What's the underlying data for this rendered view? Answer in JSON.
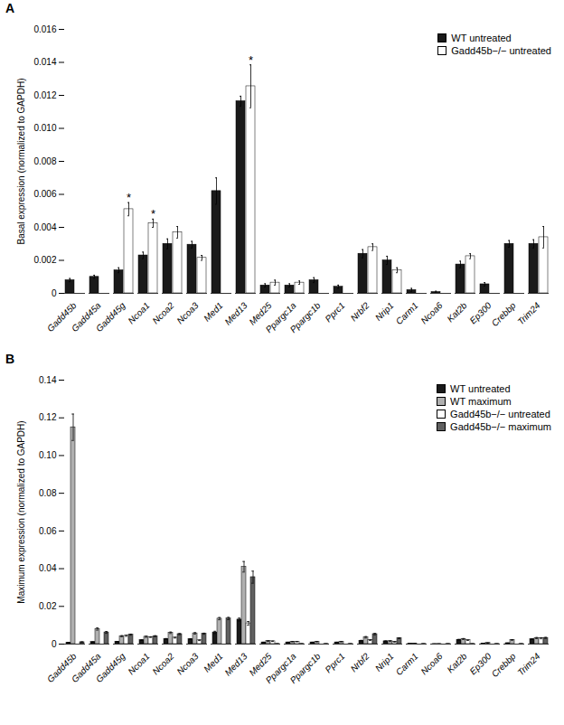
{
  "chart_data": [
    {
      "type": "bar",
      "title": "A",
      "ylabel": "Basal expression (normalized to GAPDH)",
      "categories": [
        "Gadd45b",
        "Gadd45a",
        "Gadd45g",
        "Ncoa1",
        "Ncoa2",
        "Ncoa3",
        "Med1",
        "Med13",
        "Med25",
        "Ppargc1a",
        "Ppargc1b",
        "Pprc1",
        "Nrbf2",
        "Nrip1",
        "Carm1",
        "Ncoa6",
        "Kat2b",
        "Ep300",
        "Crebbp",
        "Trim24"
      ],
      "series": [
        {
          "name": "WT untreated",
          "color": "#1a1a1a",
          "values": [
            0.0008,
            0.001,
            0.0014,
            0.0023,
            0.003,
            0.00295,
            0.0062,
            0.01165,
            0.00048,
            0.00048,
            0.0008,
            0.0004,
            0.0024,
            0.002,
            0.0002,
            8e-05,
            0.00175,
            0.00055,
            0.003,
            0.003
          ],
          "errors": [
            0.0001,
            0.0001,
            0.00015,
            0.0002,
            0.0003,
            0.0002,
            0.0008,
            0.0003,
            0.0001,
            0.0001,
            0.00015,
            0.0001,
            0.00025,
            0.00025,
            0.0001,
            5e-05,
            0.0002,
            0.0001,
            0.0002,
            0.00025
          ]
        },
        {
          "name": "Gadd45b−/− untreated",
          "color": "#ffffff",
          "values": [
            0.0,
            0.0,
            0.0051,
            0.00425,
            0.0037,
            0.00215,
            0.0,
            0.01255,
            0.00065,
            0.00065,
            0.0,
            0.0,
            0.0028,
            0.0014,
            0.0,
            0.0,
            0.00225,
            0.0,
            0.0,
            0.0034
          ],
          "errors": [
            0.0,
            0.0,
            0.0004,
            0.00025,
            0.00035,
            0.00015,
            0.0,
            0.0013,
            0.00015,
            0.0001,
            0.0,
            0.0,
            0.0002,
            0.00015,
            0.0,
            0.0,
            0.00015,
            0.0,
            0.0,
            0.00065
          ]
        }
      ],
      "annotations": [
        {
          "text": "*",
          "category": "Gadd45g",
          "series": "Gadd45b−/− untreated"
        },
        {
          "text": "*",
          "category": "Ncoa1",
          "series": "Gadd45b−/− untreated"
        },
        {
          "text": "*",
          "category": "Med13",
          "series": "Gadd45b−/− untreated"
        }
      ],
      "ylim": [
        0,
        0.016
      ],
      "yticks": [
        0,
        0.002,
        0.004,
        0.006,
        0.008,
        {
          "value": 0.01,
          "label": "0.010"
        },
        0.012,
        0.014,
        0.016
      ],
      "legend": "upper right",
      "grid": false
    },
    {
      "type": "bar",
      "title": "B",
      "ylabel": "Maximum expression (normalized to GAPDH)",
      "categories": [
        "Gadd45b",
        "Gadd45a",
        "Gadd45g",
        "Ncoa1",
        "Ncoa2",
        "Ncoa3",
        "Med1",
        "Med13",
        "Med25",
        "Ppargc1a",
        "Ppargc1b",
        "Pprc1",
        "Nrbf2",
        "Nrip1",
        "Carm1",
        "Ncoa6",
        "Kat2b",
        "Ep300",
        "Crebbp",
        "Trim24"
      ],
      "series": [
        {
          "name": "WT untreated",
          "color": "#1a1a1a",
          "values": [
            0.0008,
            0.0011,
            0.0013,
            0.0021,
            0.00275,
            0.00265,
            0.0062,
            0.013,
            0.0009,
            0.0009,
            0.0009,
            0.0009,
            0.0018,
            0.0015,
            0.00015,
            5e-05,
            0.0023,
            0.00035,
            0.0005,
            0.0026
          ],
          "errors": [
            0.0001,
            0.0001,
            0.0001,
            0.0002,
            0.0002,
            0.0002,
            0.0006,
            0.0008,
            0.0001,
            0.0001,
            0.0001,
            0.0001,
            0.0002,
            0.0002,
            3e-05,
            3e-05,
            0.0002,
            5e-05,
            5e-05,
            0.0002
          ]
        },
        {
          "name": "WT maximum",
          "color": "#b0b0b0",
          "values": [
            0.115,
            0.008,
            0.0042,
            0.0039,
            0.006,
            0.0057,
            0.0135,
            0.041,
            0.0016,
            0.0013,
            0.0013,
            0.0013,
            0.0036,
            0.00155,
            0.0002,
            8e-05,
            0.0027,
            0.0006,
            0.0022,
            0.0032
          ],
          "errors": [
            0.007,
            0.0006,
            0.0003,
            0.0003,
            0.0004,
            0.0004,
            0.0006,
            0.0028,
            0.0002,
            0.0001,
            0.0001,
            0.0001,
            0.0004,
            0.0002,
            3e-05,
            3e-05,
            0.00025,
            5e-05,
            0.0002,
            0.0003
          ]
        },
        {
          "name": "Gadd45b−/− untreated",
          "color": "#ffffff",
          "values": [
            0.0,
            0.0,
            0.0044,
            0.0037,
            0.0034,
            0.002,
            0.0,
            0.011,
            0.0015,
            0.0013,
            0.0,
            0.0,
            0.0021,
            0.0012,
            0.0,
            0.0,
            0.00205,
            0.0,
            0.0,
            0.0031
          ],
          "errors": [
            0.0,
            0.0,
            0.0003,
            0.0002,
            0.0002,
            0.00015,
            0.0,
            0.001,
            0.0001,
            0.0001,
            0.0,
            0.0,
            0.0002,
            0.00015,
            0.0,
            0.0,
            0.00015,
            0.0,
            0.0,
            0.0003
          ]
        },
        {
          "name": "Gadd45b−/− maximum",
          "color": "#606060",
          "values": [
            0.001,
            0.0062,
            0.005,
            0.0042,
            0.0053,
            0.0055,
            0.0136,
            0.0355,
            0.0001,
            0.0001,
            0.0001,
            0.0001,
            0.0053,
            0.0031,
            0.0001,
            0.0001,
            0.0001,
            0.0001,
            0.0001,
            0.0033
          ],
          "errors": [
            0.0002,
            0.0005,
            0.0003,
            0.00025,
            0.0003,
            0.0003,
            0.0006,
            0.0032,
            5e-05,
            5e-05,
            5e-05,
            5e-05,
            0.0004,
            0.00025,
            3e-05,
            3e-05,
            3e-05,
            3e-05,
            3e-05,
            0.00025
          ]
        }
      ],
      "ylim": [
        0,
        0.14
      ],
      "yticks": [
        0,
        0.02,
        0.04,
        0.06,
        0.08,
        {
          "value": 0.1,
          "label": "0.10"
        },
        0.12,
        0.14
      ],
      "legend": "upper right",
      "grid": false
    }
  ]
}
